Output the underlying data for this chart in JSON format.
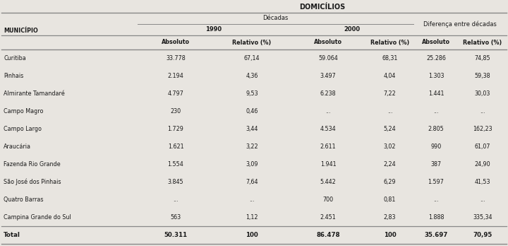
{
  "title": "DOMICÍLIOS",
  "col_header_1": "Décadas",
  "col_header_2": "Diferença entre décadas",
  "decade_1990": "1990",
  "decade_2000": "2000",
  "sub_headers": [
    "Absoluto",
    "Relativo (%)",
    "Absoluto",
    "Relativo (%)",
    "Absoluto",
    "Relativo (%)"
  ],
  "row_header": "MUNICÍPIO",
  "rows": [
    [
      "Curitiba",
      "33.778",
      "67,14",
      "59.064",
      "68,31",
      "25.286",
      "74,85"
    ],
    [
      "Pinhais",
      "2.194",
      "4,36",
      "3.497",
      "4,04",
      "1.303",
      "59,38"
    ],
    [
      "Almirante Tamandaré",
      "4.797",
      "9,53",
      "6.238",
      "7,22",
      "1.441",
      "30,03"
    ],
    [
      "Campo Magro",
      "230",
      "0,46",
      "...",
      "...",
      "...",
      "..."
    ],
    [
      "Campo Largo",
      "1.729",
      "3,44",
      "4.534",
      "5,24",
      "2.805",
      "162,23"
    ],
    [
      "Araucária",
      "1.621",
      "3,22",
      "2.611",
      "3,02",
      "990",
      "61,07"
    ],
    [
      "Fazenda Rio Grande",
      "1.554",
      "3,09",
      "1.941",
      "2,24",
      "387",
      "24,90"
    ],
    [
      "São José dos Pinhais",
      "3.845",
      "7,64",
      "5.442",
      "6,29",
      "1.597",
      "41,53"
    ],
    [
      "Quatro Barras",
      "...",
      "...",
      "700",
      "0,81",
      "...",
      "..."
    ],
    [
      "Campina Grande do Sul",
      "563",
      "1,12",
      "2.451",
      "2,83",
      "1.888",
      "335,34"
    ]
  ],
  "total_row": [
    "Total",
    "50.311",
    "100",
    "86.478",
    "100",
    "35.697",
    "70,95"
  ],
  "bg_color": "#e8e5e0",
  "text_color": "#1a1a1a",
  "line_color": "#888888"
}
